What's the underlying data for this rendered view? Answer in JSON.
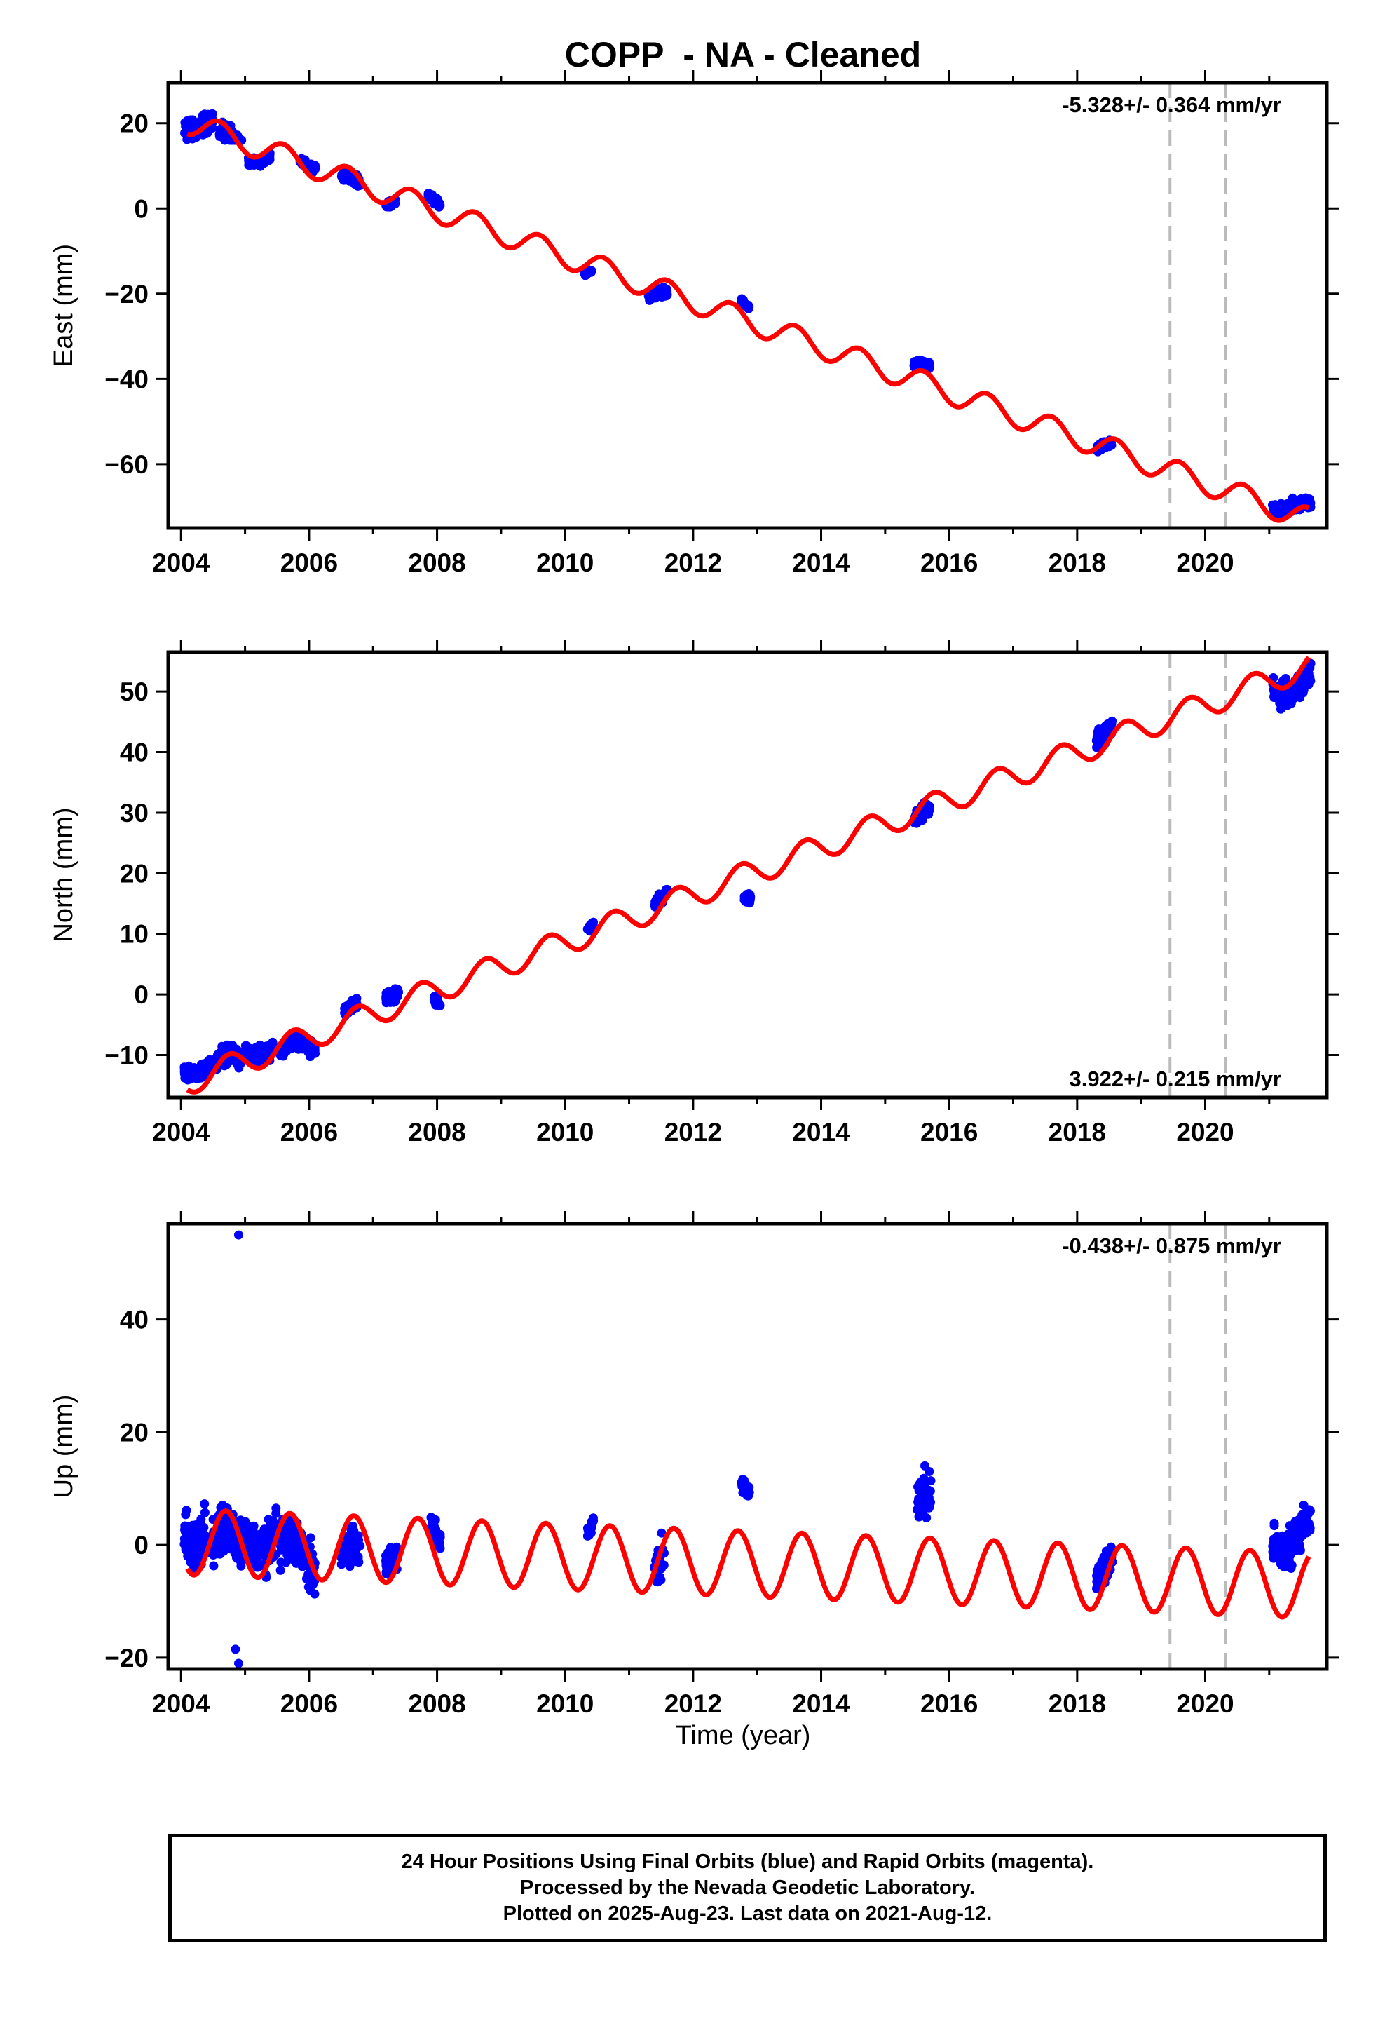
{
  "title": "COPP  - NA - Cleaned",
  "xlabel": "Time (year)",
  "caption": [
    "24 Hour Positions Using Final Orbits (blue) and Rapid Orbits (magenta).",
    "Processed by the Nevada Geodetic Laboratory.",
    "Plotted on 2025-Aug-23. Last data on 2021-Aug-12."
  ],
  "colors": {
    "observations": "#0000ff",
    "model": "#ff0000",
    "equipment_change": "#bbbbbb",
    "frame": "#000000"
  },
  "chart_data": [
    {
      "type": "scatter",
      "ylabel": "East (mm)",
      "rate_label": "-5.328+/- 0.364 mm/yr",
      "rate_position": "top-right",
      "xlim": [
        2003.8,
        2021.9
      ],
      "ylim": [
        -75,
        29.5
      ],
      "xticks": [
        2004,
        2006,
        2008,
        2010,
        2012,
        2014,
        2016,
        2018,
        2020
      ],
      "yticks": [
        20,
        0,
        -20,
        -40,
        -60
      ],
      "equipment_changes": [
        2019.45,
        2020.32
      ],
      "model": {
        "intercept": 20.3,
        "t0": 2004.1,
        "rate": -5.328,
        "annual_amp": 2.8,
        "annual_phase_year": 2004.35,
        "end": 2021.62
      },
      "observation_clusters": [
        {
          "x": [
            2004.05,
            2004.5
          ],
          "y": [
            15,
            27
          ],
          "ymean": 19
        },
        {
          "x": [
            2004.6,
            2004.95
          ],
          "y": [
            16,
            27
          ],
          "ymean": 17
        },
        {
          "x": [
            2005.05,
            2005.4
          ],
          "y": [
            9,
            14
          ],
          "ymean": 11
        },
        {
          "x": [
            2005.85,
            2006.1
          ],
          "y": [
            7.5,
            13
          ],
          "ymean": 10
        },
        {
          "x": [
            2006.5,
            2006.8
          ],
          "y": [
            5,
            11
          ],
          "ymean": 7.5
        },
        {
          "x": [
            2007.2,
            2007.35
          ],
          "y": [
            -1,
            3
          ],
          "ymean": 1
        },
        {
          "x": [
            2007.85,
            2008.05
          ],
          "y": [
            0,
            4.5
          ],
          "ymean": 2
        },
        {
          "x": [
            2010.3,
            2010.42
          ],
          "y": [
            -17,
            -14
          ],
          "ymean": -15
        },
        {
          "x": [
            2011.3,
            2011.6
          ],
          "y": [
            -23,
            -17
          ],
          "ymean": -20
        },
        {
          "x": [
            2012.75,
            2012.88
          ],
          "y": [
            -24,
            -21
          ],
          "ymean": -22.5
        },
        {
          "x": [
            2015.45,
            2015.7
          ],
          "y": [
            -39,
            -34
          ],
          "ymean": -36.5
        },
        {
          "x": [
            2018.3,
            2018.55
          ],
          "y": [
            -58,
            -53
          ],
          "ymean": -55.5
        },
        {
          "x": [
            2021.05,
            2021.65
          ],
          "y": [
            -74,
            -66
          ],
          "ymean": -70
        }
      ]
    },
    {
      "type": "scatter",
      "ylabel": "North (mm)",
      "rate_label": "3.922+/- 0.215 mm/yr",
      "rate_position": "bottom-right",
      "xlim": [
        2003.8,
        2021.9
      ],
      "ylim": [
        -17,
        56.5
      ],
      "xticks": [
        2004,
        2006,
        2008,
        2010,
        2012,
        2014,
        2016,
        2018,
        2020
      ],
      "yticks": [
        50,
        40,
        30,
        20,
        10,
        0,
        -10
      ],
      "equipment_changes": [
        2019.45,
        2020.32
      ],
      "model": {
        "intercept": -14.5,
        "t0": 2004.1,
        "rate": 3.922,
        "annual_amp": 2.1,
        "annual_phase_year": 2004.5,
        "end": 2021.62
      },
      "observation_clusters": [
        {
          "x": [
            2004.05,
            2004.5
          ],
          "y": [
            -16,
            -10
          ],
          "ymean": -13
        },
        {
          "x": [
            2004.55,
            2004.95
          ],
          "y": [
            -15,
            -5
          ],
          "ymean": -10
        },
        {
          "x": [
            2005.0,
            2005.45
          ],
          "y": [
            -14,
            -6
          ],
          "ymean": -10
        },
        {
          "x": [
            2005.55,
            2006.1
          ],
          "y": [
            -11,
            -5
          ],
          "ymean": -8
        },
        {
          "x": [
            2006.55,
            2006.75
          ],
          "y": [
            -4,
            0
          ],
          "ymean": -2
        },
        {
          "x": [
            2007.2,
            2007.4
          ],
          "y": [
            -3,
            2.5
          ],
          "ymean": -0.5
        },
        {
          "x": [
            2007.95,
            2008.05
          ],
          "y": [
            -3.5,
            1
          ],
          "ymean": -1
        },
        {
          "x": [
            2010.35,
            2010.45
          ],
          "y": [
            9,
            13
          ],
          "ymean": 11
        },
        {
          "x": [
            2011.4,
            2011.6
          ],
          "y": [
            14,
            18.5
          ],
          "ymean": 16
        },
        {
          "x": [
            2012.8,
            2012.9
          ],
          "y": [
            14,
            18
          ],
          "ymean": 16
        },
        {
          "x": [
            2015.45,
            2015.7
          ],
          "y": [
            26,
            33
          ],
          "ymean": 30
        },
        {
          "x": [
            2018.3,
            2018.55
          ],
          "y": [
            39,
            47
          ],
          "ymean": 43
        },
        {
          "x": [
            2021.05,
            2021.65
          ],
          "y": [
            44,
            55
          ],
          "ymean": 50
        }
      ]
    },
    {
      "type": "scatter",
      "ylabel": "Up (mm)",
      "rate_label": "-0.438+/- 0.875 mm/yr",
      "rate_position": "top-right",
      "xlim": [
        2003.8,
        2021.9
      ],
      "ylim": [
        -22,
        57
      ],
      "xticks": [
        2004,
        2006,
        2008,
        2010,
        2012,
        2014,
        2016,
        2018,
        2020
      ],
      "yticks": [
        40,
        20,
        0,
        -20
      ],
      "equipment_changes": [
        2019.45,
        2020.32
      ],
      "model": {
        "intercept": 0.5,
        "t0": 2004.1,
        "rate": -0.438,
        "annual_amp": 5.8,
        "annual_phase_year": 2004.45,
        "end": 2021.62
      },
      "observation_clusters": [
        {
          "x": [
            2004.05,
            2004.4
          ],
          "y": [
            -14,
            11
          ],
          "ymean": 0
        },
        {
          "x": [
            2004.45,
            2004.95
          ],
          "y": [
            -8,
            13
          ],
          "ymean": 3
        },
        {
          "x": [
            2005.0,
            2005.5
          ],
          "y": [
            -14,
            10
          ],
          "ymean": -1
        },
        {
          "x": [
            2005.55,
            2006.1
          ],
          "y": [
            -15,
            9
          ],
          "ymean": 0
        },
        {
          "x": [
            2006.5,
            2006.8
          ],
          "y": [
            -8,
            8.5
          ],
          "ymean": 0
        },
        {
          "x": [
            2007.2,
            2007.4
          ],
          "y": [
            -10,
            3
          ],
          "ymean": -3
        },
        {
          "x": [
            2007.9,
            2008.05
          ],
          "y": [
            -3,
            7.5
          ],
          "ymean": 2
        },
        {
          "x": [
            2010.35,
            2010.45
          ],
          "y": [
            0,
            6
          ],
          "ymean": 3
        },
        {
          "x": [
            2011.4,
            2011.55
          ],
          "y": [
            -12.5,
            6
          ],
          "ymean": -3
        },
        {
          "x": [
            2012.75,
            2012.88
          ],
          "y": [
            6,
            14
          ],
          "ymean": 10
        },
        {
          "x": [
            2015.5,
            2015.72
          ],
          "y": [
            -5,
            18.5
          ],
          "ymean": 9
        },
        {
          "x": [
            2018.3,
            2018.55
          ],
          "y": [
            -10,
            2
          ],
          "ymean": -4
        },
        {
          "x": [
            2021.05,
            2021.65
          ],
          "y": [
            -8,
            10
          ],
          "ymean": 0
        }
      ],
      "outliers": [
        {
          "x": 2004.9,
          "y": 55
        },
        {
          "x": 2004.9,
          "y": -21
        },
        {
          "x": 2004.85,
          "y": -18.5
        }
      ]
    }
  ]
}
